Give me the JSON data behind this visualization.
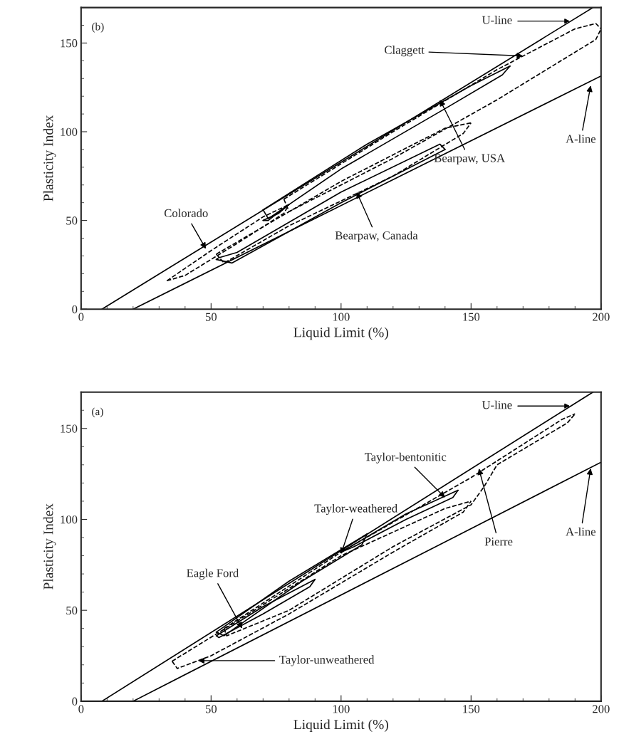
{
  "chart_data": [
    {
      "type": "line",
      "xlabel": "Liquid Limit (%)",
      "ylabel": "Plasticity Index",
      "xlim": [
        0,
        200
      ],
      "ylim": [
        0,
        170
      ],
      "xticks": [
        0,
        50,
        100,
        150,
        200
      ],
      "yticks": [
        0,
        50,
        100,
        150
      ],
      "grid": false,
      "legend": false,
      "series": [
        {
          "color": "#000000",
          "line_style": "solid",
          "x": [
            8,
            196.9
          ],
          "values": [
            0,
            170
          ]
        },
        {
          "color": "#000000",
          "line_style": "solid",
          "x": [
            20,
            200
          ],
          "values": [
            0,
            131.4
          ]
        },
        {
          "color": "#000000",
          "line_style": "dashed",
          "x": [
            78,
            120,
            160,
            190,
            198,
            200
          ],
          "values": [
            62,
            100,
            135,
            158,
            161,
            158
          ]
        },
        {
          "color": "#000000",
          "line_style": "dashed",
          "x": [
            78,
            80,
            120,
            160,
            198,
            200
          ],
          "values": [
            62,
            55,
            85,
            118,
            152,
            158
          ]
        },
        {
          "color": "#000000",
          "line_style": "solid",
          "x": [
            70,
            110,
            150,
            165
          ],
          "values": [
            56,
            93,
            126,
            137
          ]
        },
        {
          "color": "#000000",
          "line_style": "solid",
          "x": [
            70,
            72,
            100,
            140,
            162,
            165
          ],
          "values": [
            56,
            51,
            79,
            113,
            132,
            137
          ]
        },
        {
          "color": "#000000",
          "line_style": "dashed",
          "x": [
            52,
            100,
            140,
            150
          ],
          "values": [
            31,
            72,
            102,
            105
          ]
        },
        {
          "color": "#000000",
          "line_style": "dashed",
          "x": [
            52,
            55,
            80,
            120,
            147,
            150
          ],
          "values": [
            31,
            26,
            47,
            75,
            99,
            105
          ]
        },
        {
          "color": "#000000",
          "line_style": "solid",
          "x": [
            52,
            53,
            60,
            100,
            138,
            140
          ],
          "values": [
            28,
            29,
            32,
            66,
            93,
            90
          ]
        },
        {
          "color": "#000000",
          "line_style": "solid",
          "x": [
            52,
            58,
            100,
            140
          ],
          "values": [
            28,
            26,
            60,
            90
          ]
        },
        {
          "color": "#000000",
          "line_style": "dashed",
          "x": [
            33,
            50,
            70,
            80
          ],
          "values": [
            16,
            33,
            52,
            59
          ]
        },
        {
          "color": "#000000",
          "line_style": "dashed",
          "x": [
            33,
            40,
            60,
            78,
            80
          ],
          "values": [
            16,
            19,
            37,
            54,
            59
          ]
        },
        {
          "color": "#000000",
          "line_style": "solid",
          "x": [
            70,
            76,
            80
          ],
          "values": [
            50,
            54,
            59
          ]
        },
        {
          "color": "#000000",
          "line_style": "solid",
          "x": [
            70,
            72,
            78,
            80
          ],
          "values": [
            50,
            50,
            57,
            59
          ]
        }
      ],
      "annotations": [
        "(b)",
        "U-line",
        {
          "text": "Claggett",
          "x": 170,
          "y": 142.7
        },
        {
          "text": "Bearpaw, USA",
          "x": 138,
          "y": 118
        },
        {
          "text": "A-line",
          "x": 196,
          "y": 126
        },
        {
          "text": "Colorado",
          "x": 48,
          "y": 34
        },
        {
          "text": "Bearpaw, Canada",
          "x": 106,
          "y": 66
        }
      ]
    },
    {
      "type": "line",
      "xlabel": "Liquid Limit (%)",
      "ylabel": "Plasticity Index",
      "xlim": [
        0,
        200
      ],
      "ylim": [
        0,
        170
      ],
      "xticks": [
        0,
        50,
        100,
        150,
        200
      ],
      "yticks": [
        0,
        50,
        100,
        150
      ],
      "grid": false,
      "legend": false,
      "series": [
        {
          "color": "#000000",
          "line_style": "solid",
          "x": [
            8,
            196.9
          ],
          "values": [
            0,
            170
          ]
        },
        {
          "color": "#000000",
          "line_style": "solid",
          "x": [
            20,
            200
          ],
          "values": [
            0,
            131.4
          ]
        },
        {
          "color": "#000000",
          "line_style": "dashed",
          "x": [
            55,
            100,
            150,
            185,
            190
          ],
          "values": [
            40,
            82,
            123,
            155,
            158
          ]
        },
        {
          "color": "#000000",
          "line_style": "dashed",
          "x": [
            55,
            56,
            80,
            120,
            150,
            152,
            155,
            160,
            187,
            190
          ],
          "values": [
            40,
            36,
            50,
            85,
            108,
            112,
            118,
            130,
            153,
            158
          ]
        },
        {
          "color": "#000000",
          "line_style": "solid",
          "x": [
            100,
            125,
            145
          ],
          "values": [
            82,
            103,
            116
          ]
        },
        {
          "color": "#000000",
          "line_style": "solid",
          "x": [
            100,
            105,
            125,
            143,
            145
          ],
          "values": [
            82,
            85,
            100,
            112,
            116
          ]
        },
        {
          "color": "#000000",
          "line_style": "solid",
          "x": [
            52,
            80,
            110
          ],
          "values": [
            38,
            66,
            92
          ]
        },
        {
          "color": "#000000",
          "line_style": "solid",
          "x": [
            52,
            55,
            85,
            108,
            110
          ],
          "values": [
            38,
            36,
            66,
            86,
            92
          ]
        },
        {
          "color": "#000000",
          "line_style": "solid",
          "x": [
            52,
            70,
            90
          ],
          "values": [
            36,
            52,
            67
          ]
        },
        {
          "color": "#000000",
          "line_style": "solid",
          "x": [
            52,
            53,
            70,
            88,
            90
          ],
          "values": [
            36,
            35,
            48,
            63,
            67
          ]
        },
        {
          "color": "#000000",
          "line_style": "dashed",
          "x": [
            35,
            60,
            100,
            140,
            150
          ],
          "values": [
            22,
            44,
            80,
            106,
            110
          ]
        },
        {
          "color": "#000000",
          "line_style": "dashed",
          "x": [
            35,
            37,
            50,
            80,
            120,
            147,
            150
          ],
          "values": [
            22,
            18,
            25,
            48,
            82,
            104,
            110
          ]
        }
      ],
      "annotations": [
        "(a)",
        "U-line",
        {
          "text": "Taylor-bentonitic",
          "x": 140,
          "y": 112
        },
        {
          "text": "Pierre",
          "x": 153,
          "y": 128
        },
        {
          "text": "A-line",
          "x": 196,
          "y": 128
        },
        {
          "text": "Taylor-weathered",
          "x": 100,
          "y": 81
        },
        {
          "text": "Eagle Ford",
          "x": 62,
          "y": 40
        },
        {
          "text": "Taylor-unweathered",
          "x": 45,
          "y": 22.3
        }
      ]
    }
  ]
}
